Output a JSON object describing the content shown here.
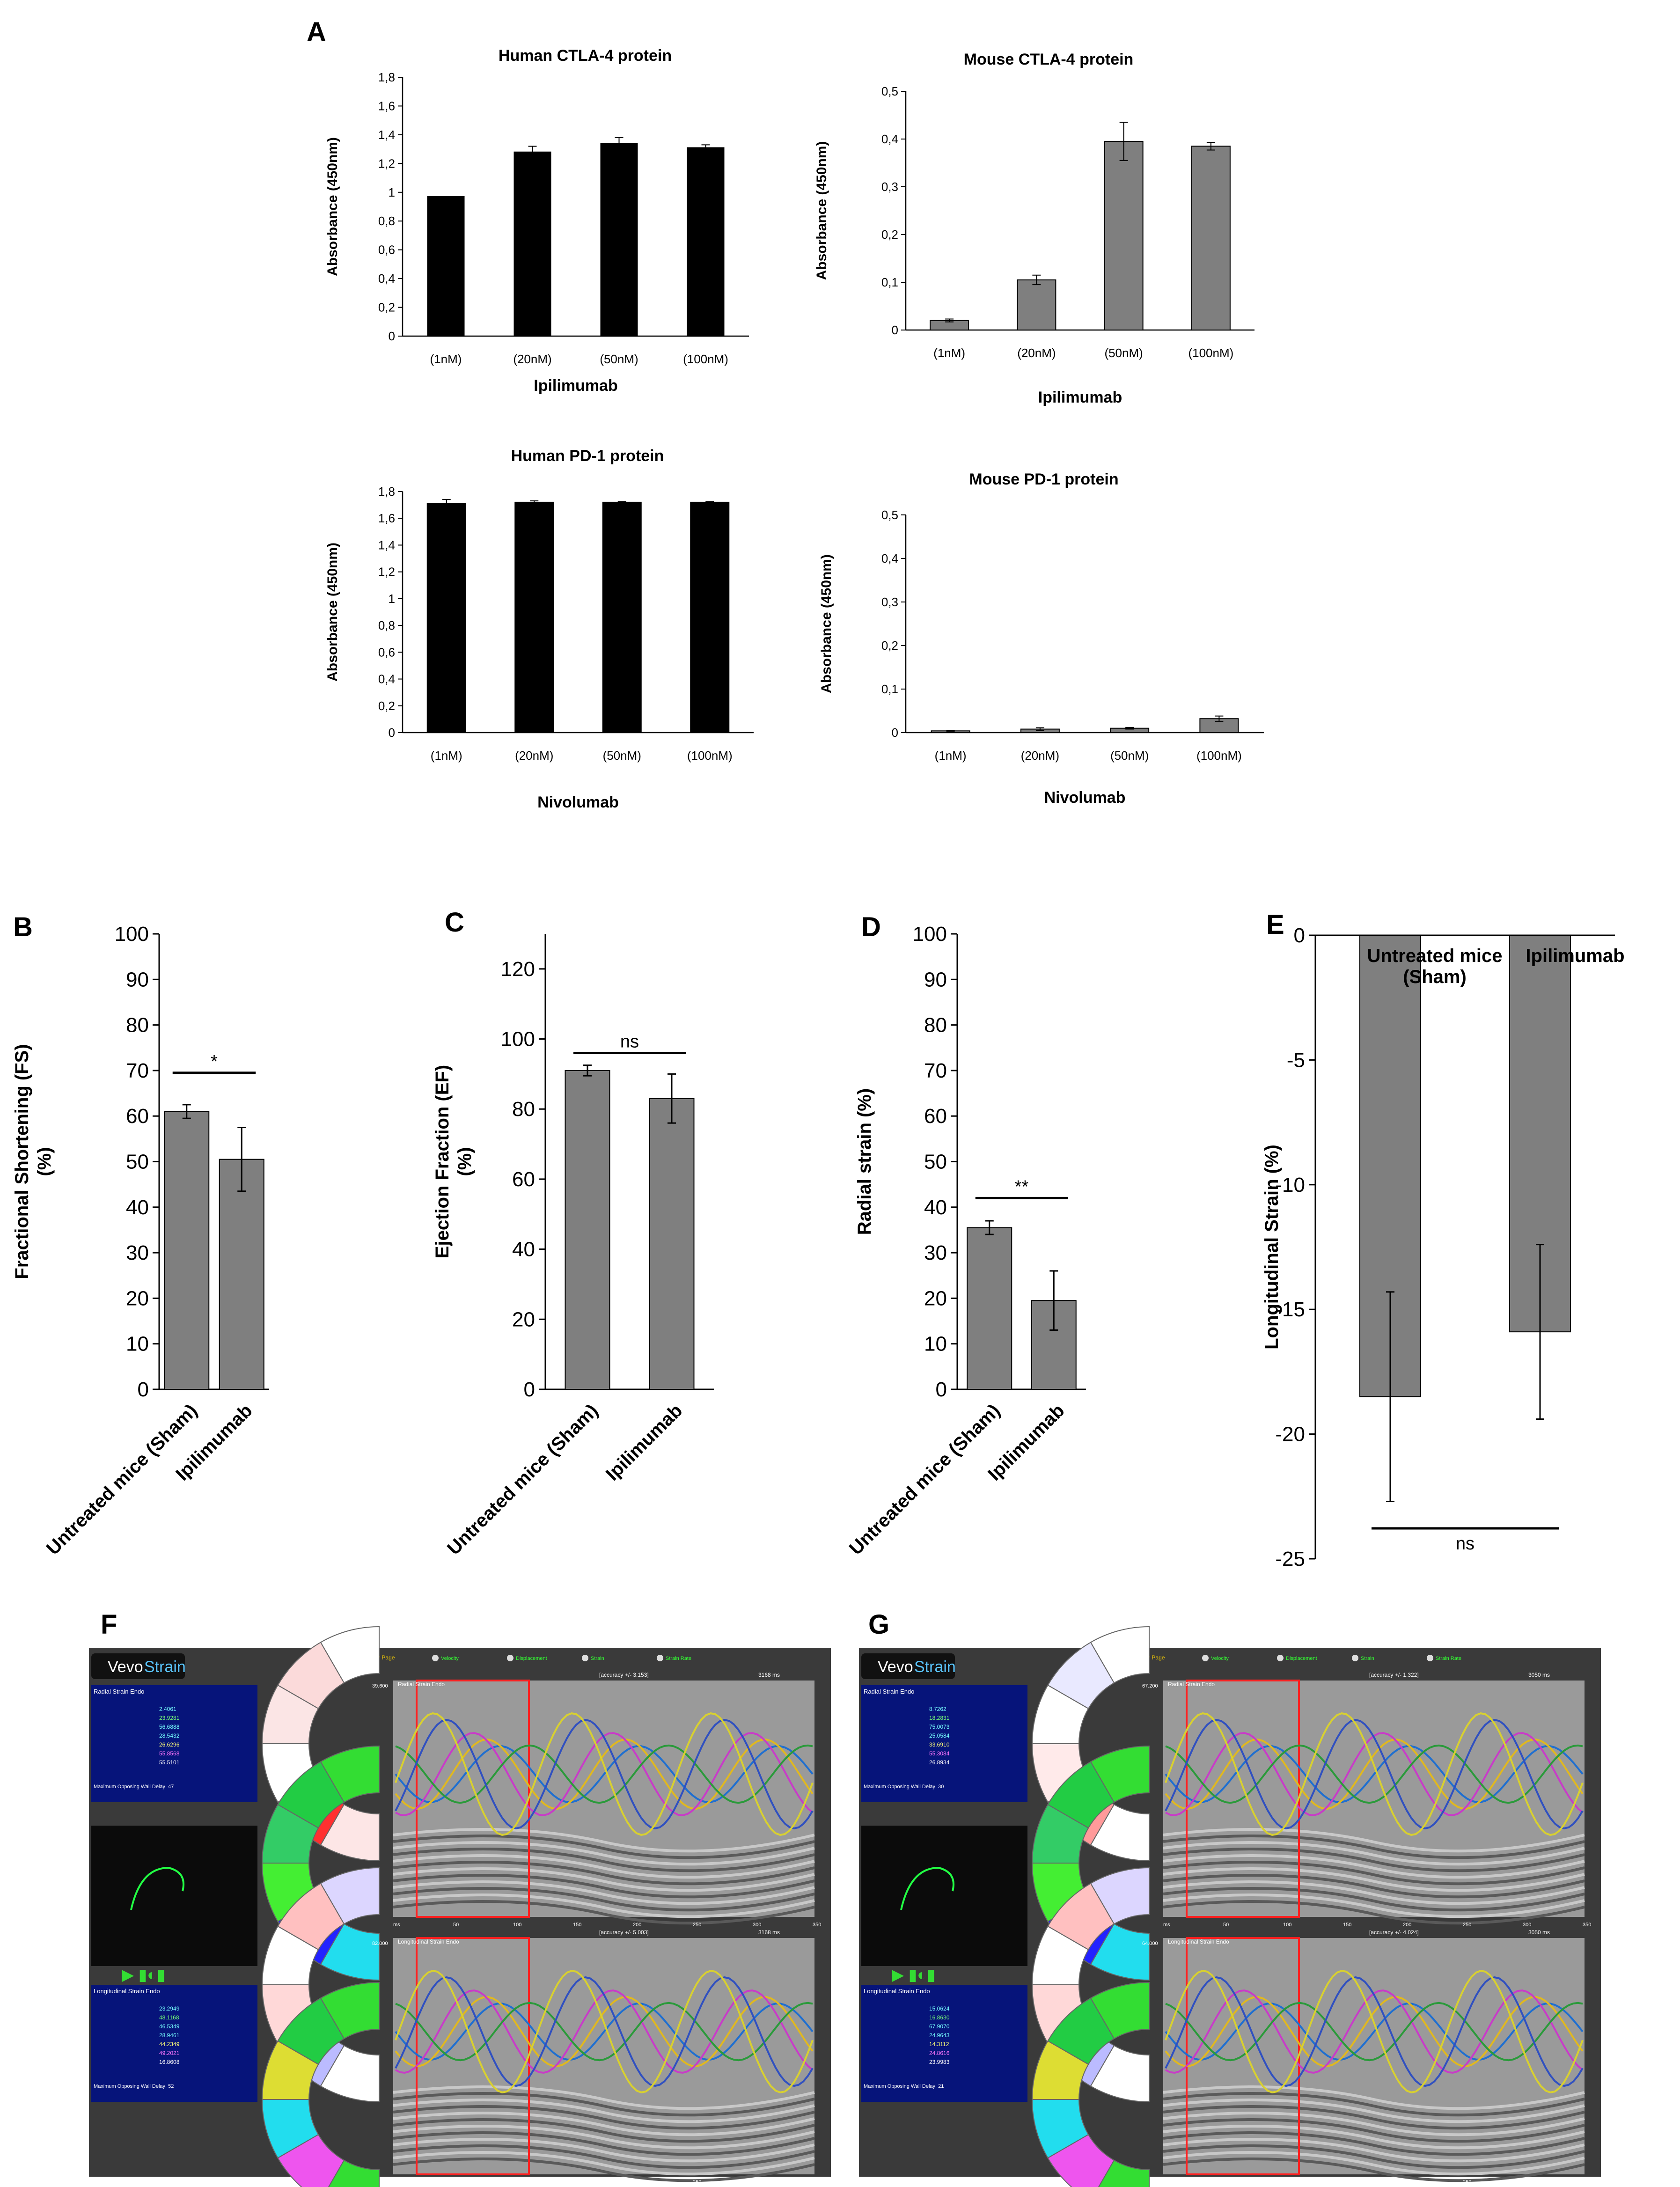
{
  "panels": {
    "A": "A",
    "B": "B",
    "C": "C",
    "D": "D",
    "E": "E",
    "F": "F",
    "G": "G"
  },
  "chart_data": [
    {
      "id": "A1",
      "type": "bar",
      "title": "Human CTLA-4 protein",
      "xlabel": "Ipilimumab",
      "ylabel": "Absorbance (450nm)",
      "categories": [
        "(1nM)",
        "(20nM)",
        "(50nM)",
        "(100nM)"
      ],
      "values": [
        0.97,
        1.28,
        1.34,
        1.31
      ],
      "errors": [
        0,
        0.04,
        0.04,
        0.02
      ],
      "ylim": [
        0,
        1.8
      ],
      "yticks": [
        "0",
        "0,2",
        "0,4",
        "0,6",
        "0,8",
        "1",
        "1,2",
        "1,4",
        "1,6",
        "1,8"
      ],
      "bar_color": "#000000"
    },
    {
      "id": "A2",
      "type": "bar",
      "title": "Mouse CTLA-4 protein",
      "xlabel": "Ipilimumab",
      "ylabel": "Absorbance (450nm)",
      "categories": [
        "(1nM)",
        "(20nM)",
        "(50nM)",
        "(100nM)"
      ],
      "values": [
        0.02,
        0.105,
        0.395,
        0.385
      ],
      "errors": [
        0.003,
        0.01,
        0.04,
        0.008
      ],
      "ylim": [
        0,
        0.5
      ],
      "yticks": [
        "0",
        "0,1",
        "0,2",
        "0,3",
        "0,4",
        "0,5"
      ],
      "bar_color": "#7f7f7f"
    },
    {
      "id": "A3",
      "type": "bar",
      "title": "Human PD-1 protein",
      "xlabel": "Nivolumab",
      "ylabel": "Absorbance (450nm)",
      "categories": [
        "(1nM)",
        "(20nM)",
        "(50nM)",
        "(100nM)"
      ],
      "values": [
        1.71,
        1.72,
        1.72,
        1.72
      ],
      "errors": [
        0.03,
        0.01,
        0.005,
        0.005
      ],
      "ylim": [
        0,
        1.8
      ],
      "yticks": [
        "0",
        "0,2",
        "0,4",
        "0,6",
        "0,8",
        "1",
        "1,2",
        "1,4",
        "1,6",
        "1,8"
      ],
      "bar_color": "#000000"
    },
    {
      "id": "A4",
      "type": "bar",
      "title": "Mouse PD-1 protein",
      "xlabel": "Nivolumab",
      "ylabel": "Absorbance (450nm)",
      "categories": [
        "(1nM)",
        "(20nM)",
        "(50nM)",
        "(100nM)"
      ],
      "values": [
        0.004,
        0.008,
        0.01,
        0.032
      ],
      "errors": [
        0.001,
        0.003,
        0.002,
        0.006
      ],
      "ylim": [
        0,
        0.5
      ],
      "yticks": [
        "0",
        "0,1",
        "0,2",
        "0,3",
        "0,4",
        "0,5"
      ],
      "bar_color": "#7f7f7f"
    },
    {
      "id": "B",
      "type": "bar",
      "ylabel": "Fractional Shortening (FS) (%)",
      "categories": [
        "Untreated mice (Sham)",
        "Ipilimumab"
      ],
      "values": [
        61,
        50.5
      ],
      "errors": [
        1.5,
        7
      ],
      "ylim": [
        0,
        100
      ],
      "yticks": [
        "0",
        "10",
        "20",
        "30",
        "40",
        "50",
        "60",
        "70",
        "80",
        "90",
        "100"
      ],
      "significance": "*",
      "bar_color": "#7f7f7f"
    },
    {
      "id": "C",
      "type": "bar",
      "ylabel": "Ejection Fraction (EF) (%)",
      "categories": [
        "Untreated mice (Sham)",
        "Ipilimumab"
      ],
      "values": [
        91,
        83
      ],
      "errors": [
        1.5,
        7
      ],
      "ylim": [
        0,
        130
      ],
      "yticks": [
        "0",
        "20",
        "40",
        "60",
        "80",
        "100",
        "120"
      ],
      "significance": "ns",
      "bar_color": "#7f7f7f"
    },
    {
      "id": "D",
      "type": "bar",
      "ylabel": "Radial strain (%)",
      "categories": [
        "Untreated mice (Sham)",
        "Ipilimumab"
      ],
      "values": [
        35.5,
        19.5
      ],
      "errors": [
        1.5,
        6.5
      ],
      "ylim": [
        0,
        100
      ],
      "yticks": [
        "0",
        "10",
        "20",
        "30",
        "40",
        "50",
        "60",
        "70",
        "80",
        "90",
        "100"
      ],
      "significance": "**",
      "bar_color": "#7f7f7f"
    },
    {
      "id": "E",
      "type": "bar",
      "ylabel": "Longitudinal Strain (%)",
      "categories": [
        "Untreated mice (Sham)",
        "Ipilimumab"
      ],
      "values": [
        -18.5,
        -15.9
      ],
      "errors": [
        4.2,
        3.5
      ],
      "ylim": [
        -25,
        0
      ],
      "yticks": [
        "0",
        "-5",
        "-10",
        "-15",
        "-20",
        "-25"
      ],
      "significance": "ns",
      "bar_color": "#7f7f7f"
    }
  ],
  "vevo": [
    {
      "id": "F",
      "brand": "Vevo",
      "brand2": "Strain",
      "page_title": "Segmental Synchronicity Page",
      "radial_header": "Radial Strain Endo",
      "longitudinal_header": "Longitudinal Strain Endo",
      "radial_rows": [
        "2.4061",
        "23.9281",
        "56.6888",
        "28.5432",
        "26.6296",
        "55.8568",
        "55.5101"
      ],
      "longitudinal_rows": [
        "23.2949",
        "48.1168",
        "46.5349",
        "28.9461",
        "44.2349",
        "49.2021",
        "16.8608"
      ],
      "radial_accuracy": "[accuracy +/- 3.153]",
      "longitudinal_accuracy": "[accuracy +/- 5.003]",
      "radial_delay": "Maximum Opposing Wall Delay: 47",
      "longitudinal_delay": "Maximum Opposing Wall Delay: 52",
      "duration": "3168 ms",
      "toolbar": [
        "Velocity",
        "Displacement",
        "Strain",
        "Strain Rate"
      ],
      "radial_ytick_top": "39.600",
      "long_ytick_top": "82.000",
      "xticks": [
        "ms",
        "50",
        "100",
        "150",
        "200",
        "250",
        "300",
        "350"
      ]
    },
    {
      "id": "G",
      "brand": "Vevo",
      "brand2": "Strain",
      "page_title": "Segmental Synchronicity Page",
      "radial_header": "Radial Strain Endo",
      "longitudinal_header": "Longitudinal Strain Endo",
      "radial_rows": [
        "8.7262",
        "18.2831",
        "75.0073",
        "25.0584",
        "33.6910",
        "55.3084",
        "26.8934"
      ],
      "longitudinal_rows": [
        "15.0624",
        "16.8630",
        "67.9070",
        "24.9643",
        "14.3112",
        "24.8616",
        "23.9983"
      ],
      "radial_accuracy": "[accuracy +/- 1.322]",
      "longitudinal_accuracy": "[accuracy +/- 4.024]",
      "radial_delay": "Maximum Opposing Wall Delay: 30",
      "longitudinal_delay": "Maximum Opposing Wall Delay: 21",
      "duration": "3050 ms",
      "toolbar": [
        "Velocity",
        "Displacement",
        "Strain",
        "Strain Rate"
      ],
      "radial_ytick_top": "67.200",
      "long_ytick_top": "64.000",
      "xticks": [
        "ms",
        "50",
        "100",
        "150",
        "200",
        "250",
        "300",
        "350"
      ]
    }
  ]
}
